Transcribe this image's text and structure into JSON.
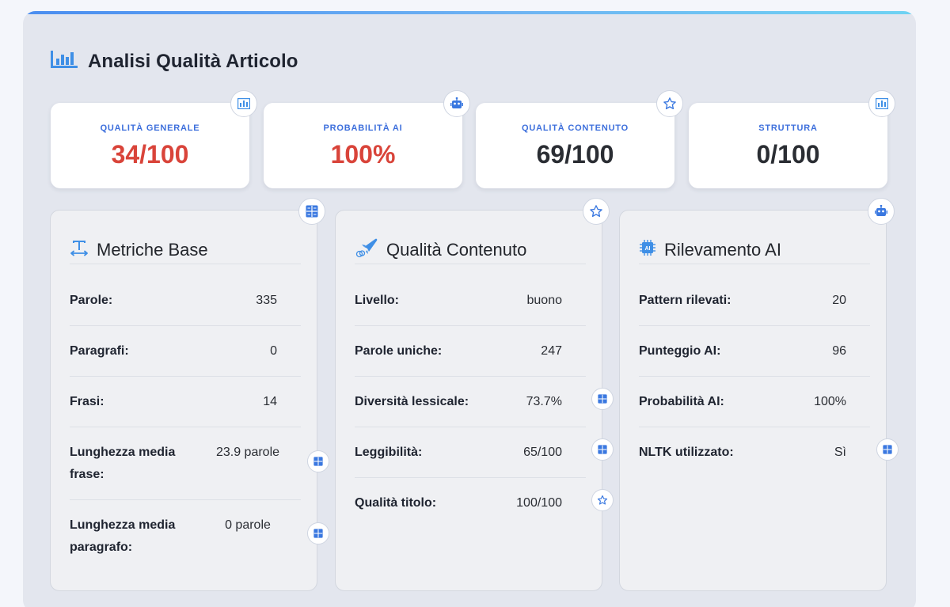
{
  "panel": {
    "title": "Analisi Qualità Articolo",
    "accent": "#3d6fdc"
  },
  "stats": [
    {
      "label": "QUALITÀ GENERALE",
      "value": "34/100",
      "color": "#d9443a",
      "icon": "chart-icon"
    },
    {
      "label": "PROBABILITÀ AI",
      "value": "100%",
      "color": "#d9443a",
      "icon": "robot-icon"
    },
    {
      "label": "QUALITÀ CONTENUTO",
      "value": "69/100",
      "color": "#2a2d33",
      "icon": "star-icon"
    },
    {
      "label": "STRUTTURA",
      "value": "0/100",
      "color": "#2a2d33",
      "icon": "chart-icon"
    }
  ],
  "metrics": {
    "title": "Metriche Base",
    "rows": [
      {
        "label": "Parole:",
        "value": "335"
      },
      {
        "label": "Paragrafi:",
        "value": "0"
      },
      {
        "label": "Frasi:",
        "value": "14"
      },
      {
        "label": "Lunghezza media frase:",
        "value": "23.9 parole"
      },
      {
        "label": "Lunghezza media paragrafo:",
        "value": "0 parole"
      }
    ]
  },
  "content": {
    "title": "Qualità Contenuto",
    "rows": [
      {
        "label": "Livello:",
        "value": "buono"
      },
      {
        "label": "Parole uniche:",
        "value": "247"
      },
      {
        "label": "Diversità lessicale:",
        "value": "73.7%"
      },
      {
        "label": "Leggibilità:",
        "value": "65/100"
      },
      {
        "label": "Qualità titolo:",
        "value": "100/100"
      }
    ]
  },
  "ai": {
    "title": "Rilevamento AI",
    "icon_text": "AI",
    "rows": [
      {
        "label": "Pattern rilevati:",
        "value": "20"
      },
      {
        "label": "Punteggio AI:",
        "value": "96"
      },
      {
        "label": "Probabilità AI:",
        "value": "100%"
      },
      {
        "label": "NLTK utilizzato:",
        "value": "Sì"
      }
    ]
  }
}
